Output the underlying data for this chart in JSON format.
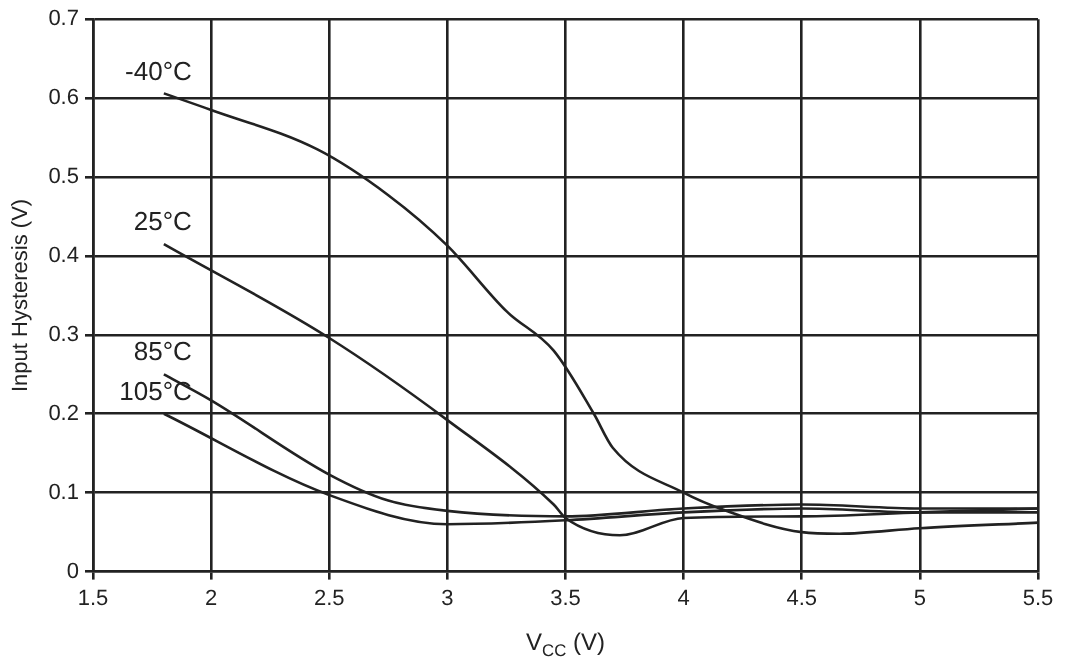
{
  "chart_data": {
    "type": "line",
    "xlabel": "V$_{CC}$ (V)",
    "ylabel": "Input Hysteresis (V)",
    "xlim": [
      1.5,
      5.5
    ],
    "ylim": [
      0,
      0.7
    ],
    "xticks": [
      1.5,
      2,
      2.5,
      3,
      3.5,
      4,
      4.5,
      5,
      5.5
    ],
    "yticks": [
      0,
      0.1,
      0.2,
      0.3,
      0.4,
      0.5,
      0.6,
      0.7
    ],
    "grid": true,
    "legend": false,
    "marker": "none",
    "line_style": "solid",
    "series": [
      {
        "color": "#222222",
        "x": [
          1.8,
          2.0,
          2.45,
          2.75,
          3.0,
          3.25,
          3.45,
          3.62,
          3.7,
          4.0,
          4.18,
          4.5,
          4.66,
          5.0,
          5.5
        ],
        "values": [
          0.606,
          0.585,
          0.535,
          0.477,
          0.413,
          0.33,
          0.28,
          0.2,
          0.157,
          0.1,
          0.077,
          0.05,
          0.048,
          0.055,
          0.062
        ]
      },
      {
        "color": "#222222",
        "x": [
          1.8,
          2.5,
          3.0,
          3.45,
          3.5,
          3.73,
          4.0,
          4.5,
          5.0,
          5.5
        ],
        "values": [
          0.415,
          0.296,
          0.192,
          0.085,
          0.068,
          0.046,
          0.068,
          0.07,
          0.075,
          0.08
        ]
      },
      {
        "color": "#222222",
        "x": [
          1.8,
          2.0,
          2.5,
          2.75,
          3.0,
          3.5,
          4.0,
          4.5,
          5.0,
          5.5
        ],
        "values": [
          0.25,
          0.217,
          0.123,
          0.09,
          0.077,
          0.07,
          0.08,
          0.085,
          0.08,
          0.08
        ]
      },
      {
        "color": "#222222",
        "x": [
          1.8,
          2.5,
          3.0,
          3.5,
          4.0,
          4.5,
          5.0,
          5.5
        ],
        "values": [
          0.2,
          0.097,
          0.06,
          0.065,
          0.075,
          0.08,
          0.075,
          0.075
        ]
      }
    ],
    "annotations": [
      "-40°C",
      "25°C",
      "85°C",
      "105°C"
    ]
  }
}
